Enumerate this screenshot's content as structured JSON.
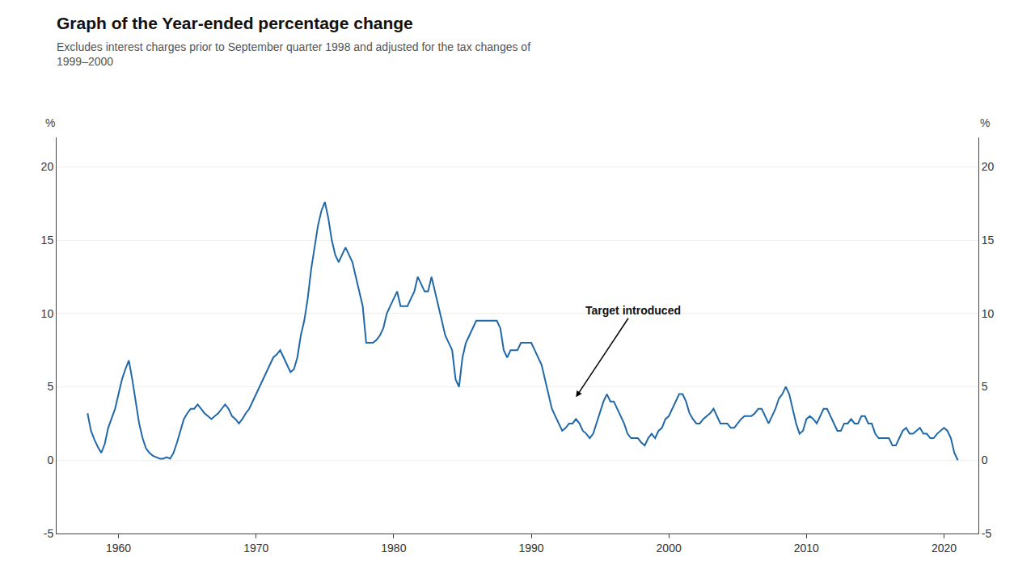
{
  "chart_data": {
    "type": "line",
    "title": "Graph of the Year-ended percentage change",
    "subtitle": "Excludes interest charges prior to September quarter 1998 and adjusted for the tax changes of\n1999–2000",
    "ylabel": "%",
    "y2label": "%",
    "color": "#2168a8",
    "grid": true,
    "annotations": [
      {
        "text": "Target introduced",
        "x": 1993.25,
        "y": 4.3
      }
    ],
    "xlim": [
      1955.5,
      2022.5
    ],
    "xticks": [
      1960,
      1970,
      1980,
      1990,
      2000,
      2010,
      2020
    ],
    "ylim": [
      -5,
      22
    ],
    "yticks": [
      -5,
      0,
      5,
      10,
      15,
      20
    ],
    "y2lim": [
      -5,
      22
    ],
    "y2ticks": [
      -5,
      0,
      5,
      10,
      15,
      20
    ],
    "x": [
      1957.75,
      1958.0,
      1958.25,
      1958.5,
      1958.75,
      1959.0,
      1959.25,
      1959.5,
      1959.75,
      1960.0,
      1960.25,
      1960.5,
      1960.75,
      1961.0,
      1961.25,
      1961.5,
      1961.75,
      1962.0,
      1962.25,
      1962.5,
      1962.75,
      1963.0,
      1963.25,
      1963.5,
      1963.75,
      1964.0,
      1964.25,
      1964.5,
      1964.75,
      1965.0,
      1965.25,
      1965.5,
      1965.75,
      1966.0,
      1966.25,
      1966.5,
      1966.75,
      1967.0,
      1967.25,
      1967.5,
      1967.75,
      1968.0,
      1968.25,
      1968.5,
      1968.75,
      1969.0,
      1969.25,
      1969.5,
      1969.75,
      1970.0,
      1970.25,
      1970.5,
      1970.75,
      1971.0,
      1971.25,
      1971.5,
      1971.75,
      1972.0,
      1972.25,
      1972.5,
      1972.75,
      1973.0,
      1973.25,
      1973.5,
      1973.75,
      1974.0,
      1974.25,
      1974.5,
      1974.75,
      1975.0,
      1975.25,
      1975.5,
      1975.75,
      1976.0,
      1976.25,
      1976.5,
      1976.75,
      1977.0,
      1977.25,
      1977.5,
      1977.75,
      1978.0,
      1978.25,
      1978.5,
      1978.75,
      1979.0,
      1979.25,
      1979.5,
      1979.75,
      1980.0,
      1980.25,
      1980.5,
      1980.75,
      1981.0,
      1981.25,
      1981.5,
      1981.75,
      1982.0,
      1982.25,
      1982.5,
      1982.75,
      1983.0,
      1983.25,
      1983.5,
      1983.75,
      1984.0,
      1984.25,
      1984.5,
      1984.75,
      1985.0,
      1985.25,
      1985.5,
      1985.75,
      1986.0,
      1986.25,
      1986.5,
      1986.75,
      1987.0,
      1987.25,
      1987.5,
      1987.75,
      1988.0,
      1988.25,
      1988.5,
      1988.75,
      1989.0,
      1989.25,
      1989.5,
      1989.75,
      1990.0,
      1990.25,
      1990.5,
      1990.75,
      1991.0,
      1991.25,
      1991.5,
      1991.75,
      1992.0,
      1992.25,
      1992.5,
      1992.75,
      1993.0,
      1993.25,
      1993.5,
      1993.75,
      1994.0,
      1994.25,
      1994.5,
      1994.75,
      1995.0,
      1995.25,
      1995.5,
      1995.75,
      1996.0,
      1996.25,
      1996.5,
      1996.75,
      1997.0,
      1997.25,
      1997.5,
      1997.75,
      1998.0,
      1998.25,
      1998.5,
      1998.75,
      1999.0,
      1999.25,
      1999.5,
      1999.75,
      2000.0,
      2000.25,
      2000.5,
      2000.75,
      2001.0,
      2001.25,
      2001.5,
      2001.75,
      2002.0,
      2002.25,
      2002.5,
      2002.75,
      2003.0,
      2003.25,
      2003.5,
      2003.75,
      2004.0,
      2004.25,
      2004.5,
      2004.75,
      2005.0,
      2005.25,
      2005.5,
      2005.75,
      2006.0,
      2006.25,
      2006.5,
      2006.75,
      2007.0,
      2007.25,
      2007.5,
      2007.75,
      2008.0,
      2008.25,
      2008.5,
      2008.75,
      2009.0,
      2009.25,
      2009.5,
      2009.75,
      2010.0,
      2010.25,
      2010.5,
      2010.75,
      2011.0,
      2011.25,
      2011.5,
      2011.75,
      2012.0,
      2012.25,
      2012.5,
      2012.75,
      2013.0,
      2013.25,
      2013.5,
      2013.75,
      2014.0,
      2014.25,
      2014.5,
      2014.75,
      2015.0,
      2015.25,
      2015.5,
      2015.75,
      2016.0,
      2016.25,
      2016.5,
      2016.75,
      2017.0,
      2017.25,
      2017.5,
      2017.75,
      2018.0,
      2018.25,
      2018.5,
      2018.75,
      2019.0,
      2019.25,
      2019.5,
      2019.75,
      2020.0,
      2020.25,
      2020.5,
      2020.75,
      2021.0
    ],
    "values": [
      3.2,
      2.0,
      1.4,
      0.9,
      0.5,
      1.1,
      2.2,
      2.8,
      3.5,
      4.5,
      5.5,
      6.2,
      6.8,
      5.5,
      4.0,
      2.5,
      1.5,
      0.8,
      0.5,
      0.3,
      0.2,
      0.1,
      0.1,
      0.2,
      0.1,
      0.5,
      1.2,
      2.0,
      2.8,
      3.2,
      3.5,
      3.5,
      3.8,
      3.5,
      3.2,
      3.0,
      2.8,
      3.0,
      3.2,
      3.5,
      3.8,
      3.5,
      3.0,
      2.8,
      2.5,
      2.8,
      3.2,
      3.5,
      4.0,
      4.5,
      5.0,
      5.5,
      6.0,
      6.5,
      7.0,
      7.2,
      7.5,
      7.0,
      6.5,
      6.0,
      6.2,
      7.0,
      8.5,
      9.5,
      11.0,
      13.0,
      14.5,
      16.0,
      17.0,
      17.6,
      16.5,
      15.0,
      14.0,
      13.5,
      14.0,
      14.5,
      14.0,
      13.5,
      12.5,
      11.5,
      10.5,
      8.0,
      8.0,
      8.0,
      8.2,
      8.5,
      9.0,
      10.0,
      10.5,
      11.0,
      11.5,
      10.5,
      10.5,
      10.5,
      11.0,
      11.5,
      12.5,
      12.0,
      11.5,
      11.5,
      12.5,
      11.5,
      10.5,
      9.5,
      8.5,
      8.0,
      7.5,
      5.5,
      5.0,
      7.0,
      8.0,
      8.5,
      9.0,
      9.5,
      9.5,
      9.5,
      9.5,
      9.5,
      9.5,
      9.5,
      9.0,
      7.5,
      7.0,
      7.5,
      7.5,
      7.5,
      8.0,
      8.0,
      8.0,
      8.0,
      7.5,
      7.0,
      6.5,
      5.5,
      4.5,
      3.5,
      3.0,
      2.5,
      2.0,
      2.2,
      2.5,
      2.5,
      2.8,
      2.5,
      2.0,
      1.8,
      1.5,
      1.8,
      2.5,
      3.2,
      4.0,
      4.5,
      4.0,
      4.0,
      3.5,
      3.0,
      2.5,
      1.8,
      1.5,
      1.5,
      1.5,
      1.2,
      1.0,
      1.5,
      1.8,
      1.5,
      2.0,
      2.2,
      2.8,
      3.0,
      3.5,
      4.0,
      4.5,
      4.5,
      4.0,
      3.2,
      2.8,
      2.5,
      2.5,
      2.8,
      3.0,
      3.2,
      3.5,
      3.0,
      2.5,
      2.5,
      2.5,
      2.2,
      2.2,
      2.5,
      2.8,
      3.0,
      3.0,
      3.0,
      3.2,
      3.5,
      3.5,
      3.0,
      2.5,
      3.0,
      3.5,
      4.2,
      4.5,
      5.0,
      4.5,
      3.5,
      2.5,
      1.8,
      2.0,
      2.8,
      3.0,
      2.8,
      2.5,
      3.0,
      3.5,
      3.5,
      3.0,
      2.5,
      2.0,
      2.0,
      2.5,
      2.5,
      2.8,
      2.5,
      2.5,
      3.0,
      3.0,
      2.5,
      2.5,
      1.8,
      1.5,
      1.5,
      1.5,
      1.5,
      1.0,
      1.0,
      1.5,
      2.0,
      2.2,
      1.8,
      1.8,
      2.0,
      2.2,
      1.8,
      1.8,
      1.5,
      1.5,
      1.8,
      2.0,
      2.2,
      2.0,
      1.5,
      0.5,
      0.0
    ]
  }
}
